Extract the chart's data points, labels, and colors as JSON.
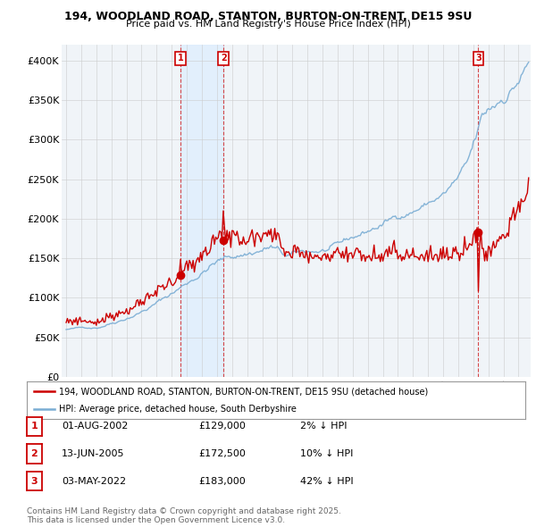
{
  "title": "194, WOODLAND ROAD, STANTON, BURTON-ON-TRENT, DE15 9SU",
  "subtitle": "Price paid vs. HM Land Registry's House Price Index (HPI)",
  "ylim": [
    0,
    420000
  ],
  "yticks": [
    0,
    50000,
    100000,
    150000,
    200000,
    250000,
    300000,
    350000,
    400000
  ],
  "ytick_labels": [
    "£0",
    "£50K",
    "£100K",
    "£150K",
    "£200K",
    "£250K",
    "£300K",
    "£350K",
    "£400K"
  ],
  "sale_color": "#cc0000",
  "hpi_color": "#7aadd4",
  "shade_color": "#ddeeff",
  "transactions": [
    {
      "label": "1",
      "date_str": "01-AUG-2002",
      "price": 129000,
      "pct": "2%",
      "x": 2002.58
    },
    {
      "label": "2",
      "date_str": "13-JUN-2005",
      "price": 172500,
      "pct": "10%",
      "x": 2005.44
    },
    {
      "label": "3",
      "date_str": "03-MAY-2022",
      "price": 183000,
      "pct": "42%",
      "x": 2022.33
    }
  ],
  "legend_line1": "194, WOODLAND ROAD, STANTON, BURTON-ON-TRENT, DE15 9SU (detached house)",
  "legend_line2": "HPI: Average price, detached house, South Derbyshire",
  "footer": "Contains HM Land Registry data © Crown copyright and database right 2025.\nThis data is licensed under the Open Government Licence v3.0.",
  "background_color": "#ffffff",
  "grid_color": "#cccccc",
  "xlim": [
    1994.7,
    2025.8
  ],
  "xstart": 1995,
  "xend": 2025
}
